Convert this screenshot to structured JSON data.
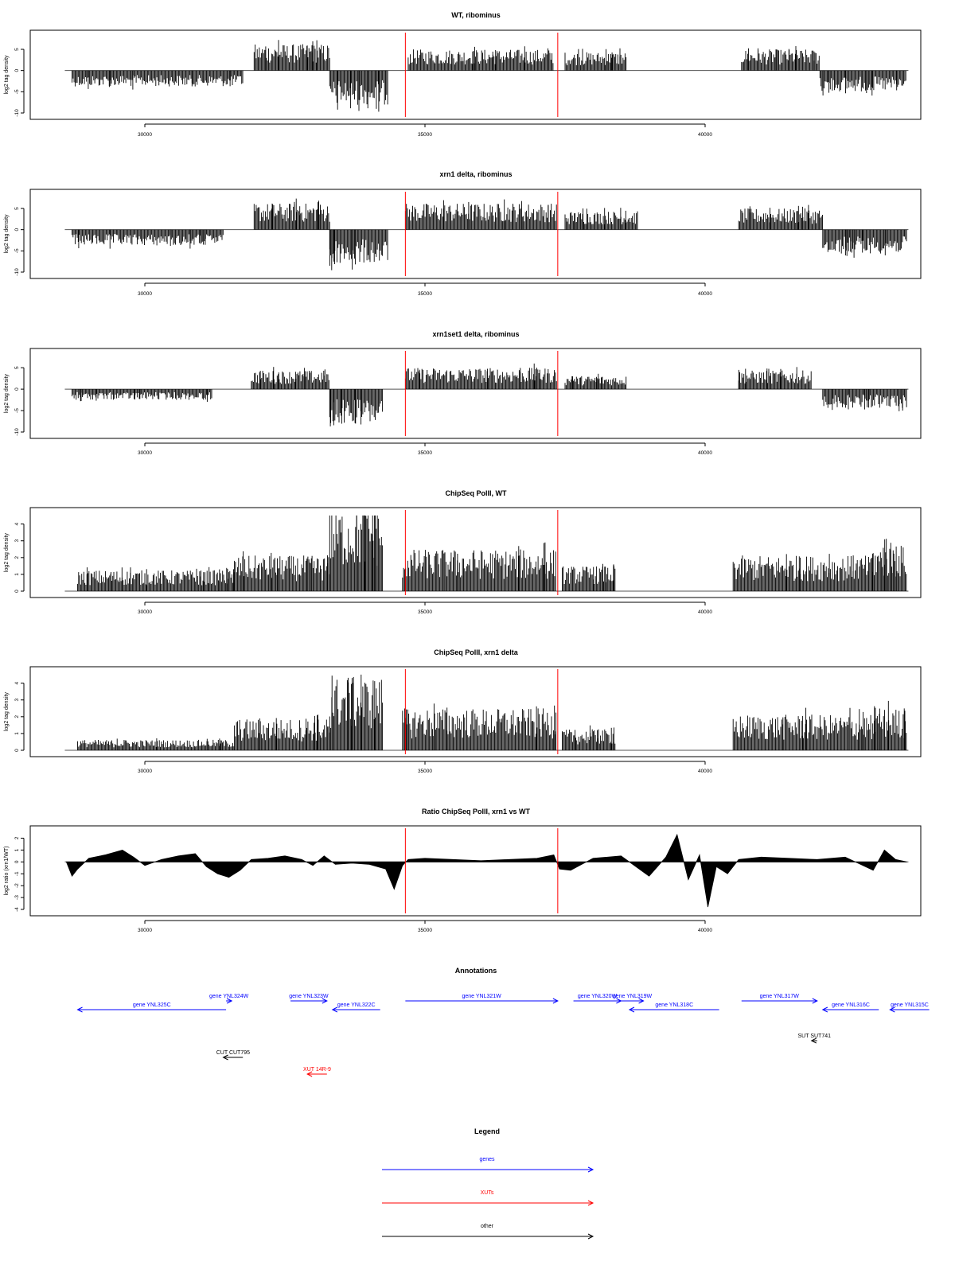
{
  "chart_data": [
    {
      "type": "bar",
      "title": "WT, ribominus",
      "ylabel": "log2 tag density",
      "xlim": [
        28600,
        43600
      ],
      "ylim": [
        -10,
        8
      ],
      "xticks": [
        30000,
        35000,
        40000
      ],
      "xtick_labels": [
        "30000",
        "35000",
        "40000"
      ],
      "yticks": [
        -10,
        -5,
        0,
        5
      ],
      "ytick_labels": [
        "-10",
        "-5",
        "0",
        "5"
      ],
      "red_lines_x": [
        34650,
        37370
      ],
      "segments": [
        {
          "start": 28700,
          "end": 31750,
          "sign": -1,
          "level": 3
        },
        {
          "start": 31950,
          "end": 33300,
          "sign": 1,
          "level": 5
        },
        {
          "start": 33300,
          "end": 34350,
          "sign": -1,
          "level": 6.5
        },
        {
          "start": 34700,
          "end": 37300,
          "sign": 1,
          "level": 4
        },
        {
          "start": 37500,
          "end": 38600,
          "sign": 1,
          "level": 3.5
        },
        {
          "start": 40650,
          "end": 42050,
          "sign": 1,
          "level": 4
        },
        {
          "start": 42050,
          "end": 43600,
          "sign": -1,
          "level": 4
        }
      ]
    },
    {
      "type": "bar",
      "title": "xrn1 delta, ribominus",
      "ylabel": "log2 tag density",
      "xlim": [
        28600,
        43600
      ],
      "ylim": [
        -10,
        8
      ],
      "xticks": [
        30000,
        35000,
        40000
      ],
      "xtick_labels": [
        "30000",
        "35000",
        "40000"
      ],
      "yticks": [
        -10,
        -5,
        0,
        5
      ],
      "ytick_labels": [
        "-10",
        "-5",
        "0",
        "5"
      ],
      "red_lines_x": [
        34650,
        37370
      ],
      "segments": [
        {
          "start": 28700,
          "end": 31400,
          "sign": -1,
          "level": 3
        },
        {
          "start": 31950,
          "end": 33300,
          "sign": 1,
          "level": 5
        },
        {
          "start": 33300,
          "end": 34350,
          "sign": -1,
          "level": 6.5
        },
        {
          "start": 34650,
          "end": 37350,
          "sign": 1,
          "level": 5
        },
        {
          "start": 37500,
          "end": 38800,
          "sign": 1,
          "level": 3.5
        },
        {
          "start": 40600,
          "end": 42100,
          "sign": 1,
          "level": 4
        },
        {
          "start": 42100,
          "end": 43600,
          "sign": -1,
          "level": 4.5
        }
      ]
    },
    {
      "type": "bar",
      "title": "xrn1set1 delta, ribominus",
      "ylabel": "log2 tag density",
      "xlim": [
        28600,
        43600
      ],
      "ylim": [
        -10,
        8
      ],
      "xticks": [
        30000,
        35000,
        40000
      ],
      "xtick_labels": [
        "30000",
        "35000",
        "40000"
      ],
      "yticks": [
        -10,
        -5,
        0,
        5
      ],
      "ytick_labels": [
        "-10",
        "-5",
        "0",
        "5"
      ],
      "red_lines_x": [
        34650,
        37370
      ],
      "segments": [
        {
          "start": 28700,
          "end": 31200,
          "sign": -1,
          "level": 2
        },
        {
          "start": 31900,
          "end": 33300,
          "sign": 1,
          "level": 3.5
        },
        {
          "start": 33300,
          "end": 34250,
          "sign": -1,
          "level": 6.5
        },
        {
          "start": 34650,
          "end": 37350,
          "sign": 1,
          "level": 4
        },
        {
          "start": 37500,
          "end": 38600,
          "sign": 1,
          "level": 2.5
        },
        {
          "start": 40600,
          "end": 41900,
          "sign": 1,
          "level": 3.5
        },
        {
          "start": 42100,
          "end": 43600,
          "sign": -1,
          "level": 3.5
        }
      ]
    },
    {
      "type": "bar",
      "title": "ChipSeq PolII, WT",
      "ylabel": "log2 tag density",
      "xlim": [
        28600,
        43600
      ],
      "ylim": [
        0,
        4.6
      ],
      "xticks": [
        30000,
        35000,
        40000
      ],
      "xtick_labels": [
        "30000",
        "35000",
        "40000"
      ],
      "yticks": [
        0,
        1,
        2,
        3,
        4
      ],
      "ytick_labels": [
        "0",
        "1",
        "2",
        "3",
        "4"
      ],
      "red_lines_x": [
        34650,
        37370
      ],
      "segments": [
        {
          "start": 28800,
          "end": 31000,
          "sign": 1,
          "level": 1
        },
        {
          "start": 31000,
          "end": 31600,
          "sign": 1,
          "level": 1
        },
        {
          "start": 31600,
          "end": 33300,
          "sign": 1,
          "level": 1.7
        },
        {
          "start": 33300,
          "end": 34250,
          "sign": 1,
          "level": 4
        },
        {
          "start": 34600,
          "end": 37350,
          "sign": 1,
          "level": 2
        },
        {
          "start": 37450,
          "end": 38400,
          "sign": 1,
          "level": 1.2
        },
        {
          "start": 40500,
          "end": 43000,
          "sign": 1,
          "level": 1.7
        },
        {
          "start": 43000,
          "end": 43600,
          "sign": 1,
          "level": 2.2
        }
      ]
    },
    {
      "type": "bar",
      "title": "ChipSeq PolII, xrn1 delta",
      "ylabel": "log2 tag density",
      "xlim": [
        28600,
        43600
      ],
      "ylim": [
        0,
        4.6
      ],
      "xticks": [
        30000,
        35000,
        40000
      ],
      "xtick_labels": [
        "30000",
        "35000",
        "40000"
      ],
      "yticks": [
        0,
        1,
        2,
        3,
        4
      ],
      "ytick_labels": [
        "0",
        "1",
        "2",
        "3",
        "4"
      ],
      "red_lines_x": [
        34650,
        37370
      ],
      "segments": [
        {
          "start": 28800,
          "end": 31600,
          "sign": 1,
          "level": 0.5
        },
        {
          "start": 31600,
          "end": 33300,
          "sign": 1,
          "level": 1.5
        },
        {
          "start": 33300,
          "end": 34250,
          "sign": 1,
          "level": 3.5
        },
        {
          "start": 34600,
          "end": 37350,
          "sign": 1,
          "level": 2
        },
        {
          "start": 37450,
          "end": 38400,
          "sign": 1,
          "level": 1
        },
        {
          "start": 40500,
          "end": 43000,
          "sign": 1,
          "level": 1.7
        },
        {
          "start": 43000,
          "end": 43600,
          "sign": 1,
          "level": 2
        }
      ]
    },
    {
      "type": "area",
      "title": "Ratio ChipSeq PolII, xrn1 vs WT",
      "ylabel": "log2 ratio (xrn1/WT)",
      "xlim": [
        28600,
        43600
      ],
      "ylim": [
        -4,
        2.5
      ],
      "xticks": [
        30000,
        35000,
        40000
      ],
      "xtick_labels": [
        "30000",
        "35000",
        "40000"
      ],
      "yticks": [
        -4,
        -3,
        -2,
        -1,
        0,
        1,
        2
      ],
      "ytick_labels": [
        "-4",
        "-3",
        "-2",
        "-1",
        "0",
        "1",
        "2"
      ],
      "red_lines_x": [
        34650,
        37370
      ],
      "x": [
        28600,
        28700,
        28800,
        29000,
        29300,
        29600,
        29800,
        30000,
        30300,
        30600,
        30900,
        31100,
        31300,
        31500,
        31700,
        31900,
        32200,
        32500,
        32800,
        33000,
        33200,
        33400,
        33700,
        34000,
        34300,
        34450,
        34600,
        34700,
        35000,
        35500,
        36000,
        36500,
        37000,
        37300,
        37400,
        37600,
        38000,
        38500,
        39000,
        39300,
        39500,
        39700,
        39900,
        40050,
        40200,
        40400,
        40600,
        41000,
        41500,
        42000,
        42500,
        43000,
        43200,
        43400,
        43600
      ],
      "y": [
        0,
        -1.2,
        -0.6,
        0.3,
        0.6,
        1.0,
        0.4,
        -0.3,
        0.2,
        0.5,
        0.7,
        -0.4,
        -1.0,
        -1.3,
        -0.7,
        0.2,
        0.3,
        0.5,
        0.2,
        -0.3,
        0.5,
        -0.2,
        -0.1,
        -0.2,
        -0.6,
        -2.3,
        -0.3,
        0.2,
        0.3,
        0.2,
        0.1,
        0.2,
        0.3,
        0.6,
        -0.6,
        -0.7,
        0.3,
        0.5,
        -1.2,
        0.4,
        2.3,
        -1.5,
        0.6,
        -3.8,
        -0.4,
        -1.0,
        0.2,
        0.4,
        0.3,
        0.2,
        0.4,
        -0.7,
        1.0,
        0.2,
        0
      ]
    }
  ],
  "annotations": {
    "title": "Annotations",
    "xlim": [
      28600,
      43600
    ],
    "items": [
      {
        "label": "gene YNL325C",
        "kind": "gene",
        "color": "#0000ff",
        "x_start": 31450,
        "x_end": 28800,
        "row": 1
      },
      {
        "label": "gene YNL324W",
        "kind": "gene",
        "color": "#0000ff",
        "x_start": 31450,
        "x_end": 31550,
        "row": 0
      },
      {
        "label": "gene YNL323W",
        "kind": "gene",
        "color": "#0000ff",
        "x_start": 32600,
        "x_end": 33250,
        "row": 0
      },
      {
        "label": "gene YNL322C",
        "kind": "gene",
        "color": "#0000ff",
        "x_start": 34200,
        "x_end": 33350,
        "row": 1
      },
      {
        "label": "gene YNL321W",
        "kind": "gene",
        "color": "#0000ff",
        "x_start": 34650,
        "x_end": 37370,
        "row": 0
      },
      {
        "label": "gene YNL320W",
        "kind": "gene",
        "color": "#0000ff",
        "x_start": 37650,
        "x_end": 38500,
        "row": 0
      },
      {
        "label": "gene YNL319W",
        "kind": "gene",
        "color": "#0000ff",
        "x_start": 38500,
        "x_end": 38900,
        "row": 0
      },
      {
        "label": "gene YNL318C",
        "kind": "gene",
        "color": "#0000ff",
        "x_start": 40250,
        "x_end": 38650,
        "row": 1
      },
      {
        "label": "gene YNL317W",
        "kind": "gene",
        "color": "#0000ff",
        "x_start": 40650,
        "x_end": 42000,
        "row": 0
      },
      {
        "label": "gene YNL316C",
        "kind": "gene",
        "color": "#0000ff",
        "x_start": 43100,
        "x_end": 42100,
        "row": 1
      },
      {
        "label": "gene YNL315C",
        "kind": "gene",
        "color": "#0000ff",
        "x_start": 44000,
        "x_end": 43300,
        "row": 1
      },
      {
        "label": "SUT SUT741",
        "kind": "other",
        "color": "#000000",
        "x_start": 42000,
        "x_end": 41900,
        "row": 2
      },
      {
        "label": "CUT CUT795",
        "kind": "other",
        "color": "#000000",
        "x_start": 31750,
        "x_end": 31400,
        "row": 3
      },
      {
        "label": "XUT 14R-9",
        "kind": "XUT",
        "color": "#ff0000",
        "x_start": 33250,
        "x_end": 32900,
        "row": 4
      }
    ]
  },
  "legend": {
    "title": "Legend",
    "items": [
      {
        "label": "genes",
        "color": "#0000ff"
      },
      {
        "label": "XUTs",
        "color": "#ff0000"
      },
      {
        "label": "other",
        "color": "#000000"
      }
    ]
  }
}
